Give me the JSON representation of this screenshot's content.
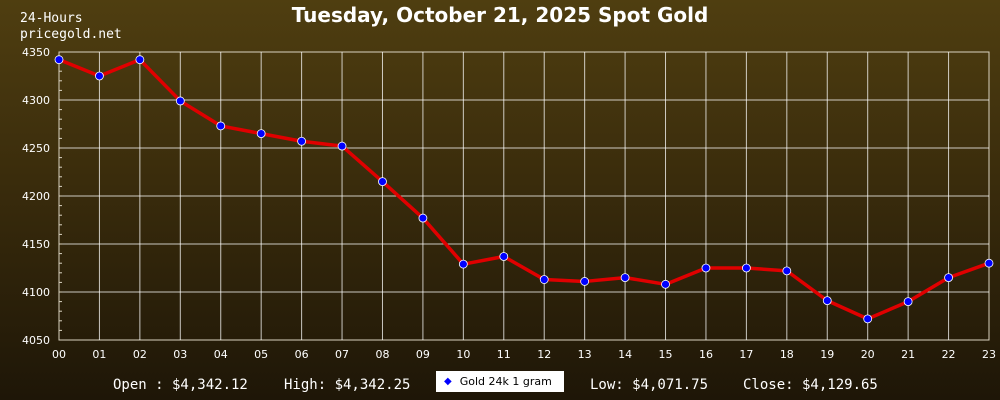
{
  "header": {
    "period": "24-Hours",
    "site": "pricegold.net",
    "title": "Tuesday, October 21, 2025 Spot Gold"
  },
  "summary": {
    "open": "Open : $4,342.12",
    "high": "High: $4,342.25",
    "low": "Low: $4,071.75",
    "close": "Close: $4,129.65"
  },
  "colors": {
    "line": "#e00000",
    "marker": "#0000ff",
    "grid": "#ffffff",
    "background_top": "#4f3e10",
    "background_bottom": "#1e1607"
  },
  "chart_data": {
    "type": "line",
    "title": "Tuesday, October 21, 2025 Spot Gold",
    "xlabel": "",
    "ylabel": "",
    "categories": [
      "00",
      "01",
      "02",
      "03",
      "04",
      "05",
      "06",
      "07",
      "08",
      "09",
      "10",
      "11",
      "12",
      "13",
      "14",
      "15",
      "16",
      "17",
      "18",
      "19",
      "20",
      "21",
      "22",
      "23"
    ],
    "ylim": [
      4050,
      4350
    ],
    "yticks": [
      4050,
      4100,
      4150,
      4200,
      4250,
      4300,
      4350
    ],
    "grid": true,
    "legend_position": "bottom-center",
    "series": [
      {
        "name": "Gold 24k 1 gram",
        "values": [
          4342,
          4325,
          4342,
          4299,
          4273,
          4265,
          4257,
          4252,
          4215,
          4177,
          4129,
          4137,
          4113,
          4111,
          4115,
          4108,
          4125,
          4125,
          4122,
          4091,
          4072,
          4090,
          4115,
          4130
        ]
      }
    ]
  }
}
